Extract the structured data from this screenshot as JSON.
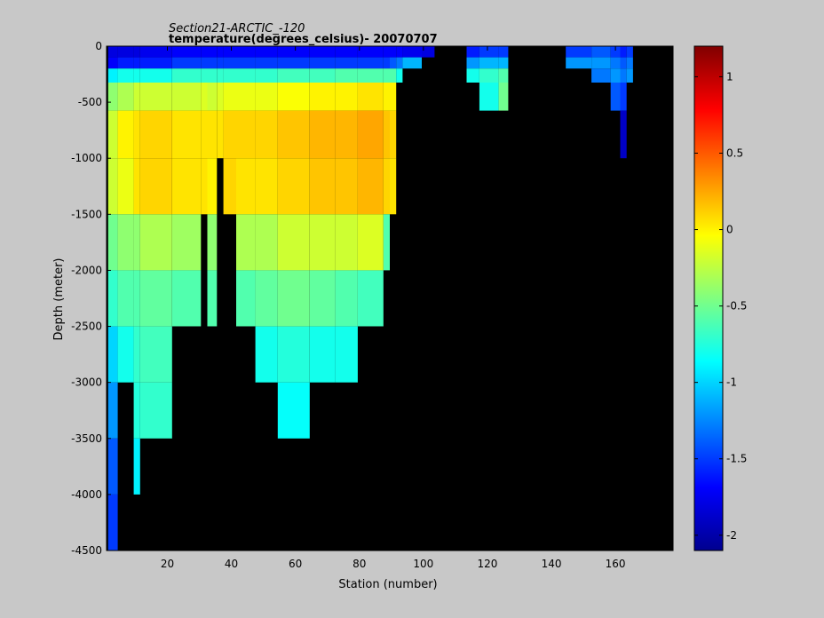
{
  "chart_data": {
    "type": "heatmap",
    "title_line1": "Section21-ARCTIC_-120",
    "title_line2": "temperature(degrees_celsius)- 20070707",
    "xlabel": "Station (number)",
    "ylabel": "Depth (meter)",
    "xlim": [
      1,
      178
    ],
    "ylim": [
      -4500,
      0
    ],
    "x_ticks": [
      20,
      40,
      60,
      80,
      100,
      120,
      140,
      160
    ],
    "y_ticks": [
      0,
      -500,
      -1000,
      -1500,
      -2000,
      -2500,
      -3000,
      -3500,
      -4000,
      -4500
    ],
    "background_color": "#000000",
    "colormap": "jet",
    "colorbar": {
      "range": [
        -2.1,
        1.2
      ],
      "ticks": [
        1,
        0.5,
        0,
        -0.5,
        -1,
        -1.5,
        -2
      ],
      "stops": [
        "#00008f",
        "#0000ff",
        "#0080ff",
        "#00ffff",
        "#80ff80",
        "#ffff00",
        "#ff8000",
        "#ff0000",
        "#800000"
      ]
    },
    "depth_levels": [
      -50,
      -150,
      -250,
      -400,
      -750,
      -1250,
      -1750,
      -2250,
      -2750,
      -3250,
      -3750,
      -4250
    ],
    "station_groups": [
      {
        "stations": [
          2,
          4
        ],
        "values": [
          -1.8,
          -1.7,
          -0.9,
          -0.4,
          -0.2,
          -0.2,
          -0.5,
          -0.7,
          -1.0,
          -1.2,
          -1.4,
          -1.5
        ]
      },
      {
        "stations": [
          5,
          9
        ],
        "values": [
          -1.8,
          -1.6,
          -0.8,
          -0.3,
          0.0,
          -0.1,
          -0.4,
          -0.6,
          -0.8,
          null,
          null,
          null
        ]
      },
      {
        "stations": [
          10,
          11
        ],
        "values": [
          -1.8,
          -1.6,
          -0.8,
          -0.2,
          0.05,
          0.05,
          -0.4,
          -0.6,
          -0.7,
          -0.75,
          -0.9,
          null
        ]
      },
      {
        "stations": [
          12,
          21
        ],
        "values": [
          -1.75,
          -1.6,
          -0.8,
          -0.2,
          0.1,
          0.1,
          -0.3,
          -0.55,
          -0.65,
          -0.7,
          null,
          null
        ]
      },
      {
        "stations": [
          22,
          30
        ],
        "values": [
          -1.7,
          -1.5,
          -0.7,
          -0.2,
          0.05,
          0.05,
          -0.35,
          -0.6,
          null,
          null,
          null,
          null
        ]
      },
      {
        "stations": [
          31,
          32
        ],
        "values": [
          -1.7,
          -1.5,
          -0.7,
          -0.15,
          0.05,
          0.05,
          null,
          null,
          null,
          null,
          null,
          null
        ]
      },
      {
        "stations": [
          33,
          35
        ],
        "values": [
          -1.7,
          -1.5,
          -0.7,
          -0.2,
          0.05,
          0.0,
          -0.4,
          -0.6,
          null,
          null,
          null,
          null
        ]
      },
      {
        "stations": [
          36,
          37
        ],
        "values": [
          -1.7,
          -1.5,
          -0.7,
          -0.15,
          0.05,
          null,
          null,
          null,
          null,
          null,
          null,
          null
        ]
      },
      {
        "stations": [
          38,
          41
        ],
        "values": [
          -1.7,
          -1.5,
          -0.7,
          -0.1,
          0.1,
          0.1,
          null,
          null,
          null,
          null,
          null,
          null
        ]
      },
      {
        "stations": [
          42,
          47
        ],
        "values": [
          -1.7,
          -1.5,
          -0.7,
          -0.1,
          0.1,
          0.05,
          -0.3,
          -0.6,
          null,
          null,
          null,
          null
        ]
      },
      {
        "stations": [
          48,
          54
        ],
        "values": [
          -1.7,
          -1.5,
          -0.7,
          -0.1,
          0.1,
          0.05,
          -0.3,
          -0.55,
          -0.8,
          null,
          null,
          null
        ]
      },
      {
        "stations": [
          55,
          64
        ],
        "values": [
          -1.7,
          -1.5,
          -0.65,
          -0.05,
          0.15,
          0.1,
          -0.2,
          -0.5,
          -0.75,
          -0.85,
          null,
          null
        ]
      },
      {
        "stations": [
          65,
          72
        ],
        "values": [
          -1.7,
          -1.5,
          -0.65,
          0.0,
          0.2,
          0.15,
          -0.2,
          -0.55,
          -0.8,
          null,
          null,
          null
        ]
      },
      {
        "stations": [
          73,
          79
        ],
        "values": [
          -1.7,
          -1.5,
          -0.6,
          0.0,
          0.2,
          0.15,
          -0.2,
          -0.6,
          -0.8,
          null,
          null,
          null
        ]
      },
      {
        "stations": [
          80,
          87
        ],
        "values": [
          -1.7,
          -1.5,
          -0.6,
          0.05,
          0.25,
          0.2,
          -0.15,
          -0.65,
          null,
          null,
          null,
          null
        ]
      },
      {
        "stations": [
          88,
          89
        ],
        "values": [
          -1.7,
          -1.5,
          -0.6,
          0.0,
          0.15,
          0.1,
          -0.6,
          null,
          null,
          null,
          null,
          null
        ]
      },
      {
        "stations": [
          90,
          91
        ],
        "values": [
          -1.7,
          -1.4,
          -0.6,
          0.0,
          0.1,
          0.05,
          null,
          null,
          null,
          null,
          null,
          null
        ]
      },
      {
        "stations": [
          92,
          93
        ],
        "values": [
          -1.7,
          -1.3,
          -0.8,
          null,
          null,
          null,
          null,
          null,
          null,
          null,
          null,
          null
        ]
      },
      {
        "stations": [
          94,
          99
        ],
        "values": [
          -1.75,
          -1.1,
          null,
          null,
          null,
          null,
          null,
          null,
          null,
          null,
          null,
          null
        ]
      },
      {
        "stations": [
          100,
          103
        ],
        "values": [
          -1.8,
          null,
          null,
          null,
          null,
          null,
          null,
          null,
          null,
          null,
          null,
          null
        ]
      },
      {
        "stations": [
          114,
          117
        ],
        "values": [
          -1.6,
          -1.2,
          -0.8,
          null,
          null,
          null,
          null,
          null,
          null,
          null,
          null,
          null
        ]
      },
      {
        "stations": [
          118,
          123
        ],
        "values": [
          -1.5,
          -1.1,
          -0.7,
          -0.8,
          null,
          null,
          null,
          null,
          null,
          null,
          null,
          null
        ]
      },
      {
        "stations": [
          124,
          126
        ],
        "values": [
          -1.5,
          -1.1,
          -0.6,
          -0.5,
          null,
          null,
          null,
          null,
          null,
          null,
          null,
          null
        ]
      },
      {
        "stations": [
          145,
          152
        ],
        "values": [
          -1.5,
          -1.2,
          null,
          null,
          null,
          null,
          null,
          null,
          null,
          null,
          null,
          null
        ]
      },
      {
        "stations": [
          153,
          158
        ],
        "values": [
          -1.4,
          -1.2,
          -1.3,
          null,
          null,
          null,
          null,
          null,
          null,
          null,
          null,
          null
        ]
      },
      {
        "stations": [
          159,
          161
        ],
        "values": [
          -1.5,
          -1.3,
          -1.2,
          -1.4,
          null,
          null,
          null,
          null,
          null,
          null,
          null,
          null
        ]
      },
      {
        "stations": [
          162,
          163
        ],
        "values": [
          -1.6,
          -1.4,
          -1.3,
          -1.5,
          -1.9,
          null,
          null,
          null,
          null,
          null,
          null,
          null
        ]
      },
      {
        "stations": [
          164,
          165
        ],
        "values": [
          -1.5,
          -1.3,
          -1.2,
          null,
          null,
          null,
          null,
          null,
          null,
          null,
          null,
          null
        ]
      }
    ]
  }
}
